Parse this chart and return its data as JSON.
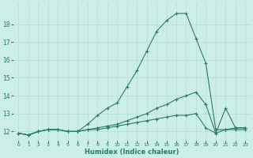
{
  "xlabel": "Humidex (Indice chaleur)",
  "ylabel": "",
  "background_color": "#cceee8",
  "grid_color": "#b8ddd6",
  "line_color": "#2a7a6a",
  "xlim": [
    -0.5,
    23.5
  ],
  "ylim": [
    11.5,
    19.2
  ],
  "yticks": [
    12,
    13,
    14,
    15,
    16,
    17,
    18
  ],
  "xticks": [
    0,
    1,
    2,
    3,
    4,
    5,
    6,
    7,
    8,
    9,
    10,
    11,
    12,
    13,
    14,
    15,
    16,
    17,
    18,
    19,
    20,
    21,
    22,
    23
  ],
  "series": [
    {
      "x": [
        0,
        1,
        2,
        3,
        4,
        5,
        6,
        7,
        8,
        9,
        10,
        11,
        12,
        13,
        14,
        15,
        16,
        17,
        18,
        19,
        20,
        21,
        22,
        23
      ],
      "y": [
        11.9,
        11.8,
        12.0,
        12.1,
        12.1,
        12.0,
        12.0,
        12.4,
        12.9,
        13.3,
        13.6,
        14.5,
        15.4,
        16.5,
        17.6,
        18.2,
        18.6,
        18.6,
        17.2,
        15.8,
        12.1,
        12.1,
        12.1,
        12.1
      ]
    },
    {
      "x": [
        0,
        1,
        2,
        3,
        4,
        5,
        6,
        7,
        8,
        9,
        10,
        11,
        12,
        13,
        14,
        15,
        16,
        17,
        18,
        19,
        20,
        21,
        22,
        23
      ],
      "y": [
        11.9,
        11.8,
        12.0,
        12.1,
        12.1,
        12.0,
        12.0,
        12.1,
        12.2,
        12.3,
        12.4,
        12.6,
        12.8,
        13.0,
        13.3,
        13.5,
        13.8,
        14.0,
        14.2,
        13.5,
        11.9,
        13.3,
        12.2,
        12.2
      ]
    },
    {
      "x": [
        0,
        1,
        2,
        3,
        4,
        5,
        6,
        7,
        8,
        9,
        10,
        11,
        12,
        13,
        14,
        15,
        16,
        17,
        18,
        19,
        20,
        21,
        22,
        23
      ],
      "y": [
        11.9,
        11.8,
        12.0,
        12.1,
        12.1,
        12.0,
        12.0,
        12.1,
        12.1,
        12.2,
        12.3,
        12.4,
        12.5,
        12.6,
        12.7,
        12.8,
        12.9,
        12.9,
        13.0,
        12.2,
        11.9,
        12.1,
        12.2,
        12.2
      ]
    }
  ]
}
